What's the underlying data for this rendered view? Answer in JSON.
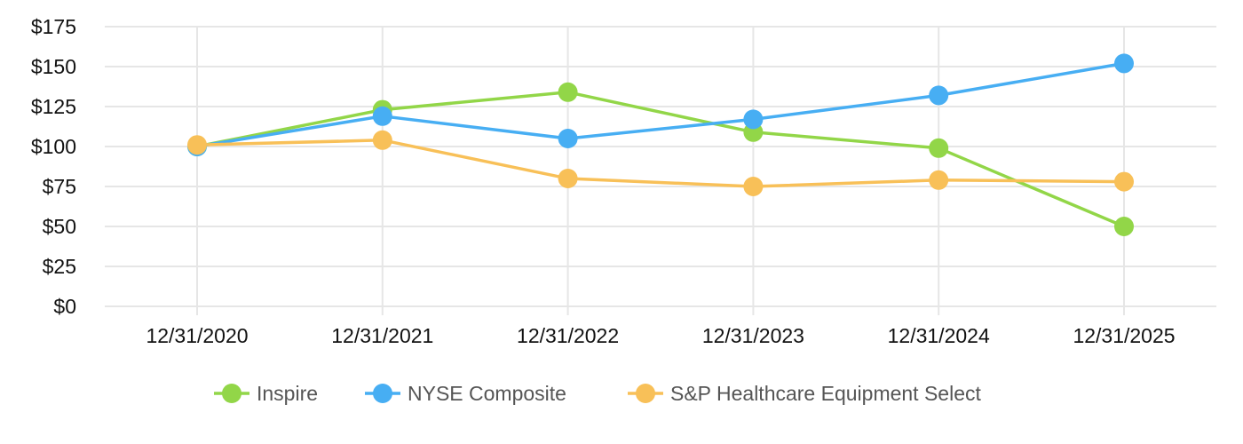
{
  "chart_data": {
    "type": "line",
    "title": "",
    "xlabel": "",
    "ylabel": "",
    "categories": [
      "12/31/2020",
      "12/31/2021",
      "12/31/2022",
      "12/31/2023",
      "12/31/2024",
      "12/31/2025"
    ],
    "ylim": [
      0,
      175
    ],
    "yticks": [
      0,
      25,
      50,
      75,
      100,
      125,
      150,
      175
    ],
    "ytick_labels": [
      "$0",
      "$25",
      "$50",
      "$75",
      "$100",
      "$125",
      "$150",
      "$175"
    ],
    "grid": true,
    "legend_position": "bottom-center",
    "series": [
      {
        "name": "Inspire",
        "color": "#92d648",
        "values": [
          100,
          123,
          134,
          109,
          99,
          50
        ]
      },
      {
        "name": "NYSE Composite",
        "color": "#47aef3",
        "values": [
          100,
          119,
          105,
          117,
          132,
          152
        ]
      },
      {
        "name": "S&P Healthcare Equipment Select",
        "color": "#f8c058",
        "values": [
          101,
          104,
          80,
          75,
          79,
          78
        ]
      }
    ]
  }
}
